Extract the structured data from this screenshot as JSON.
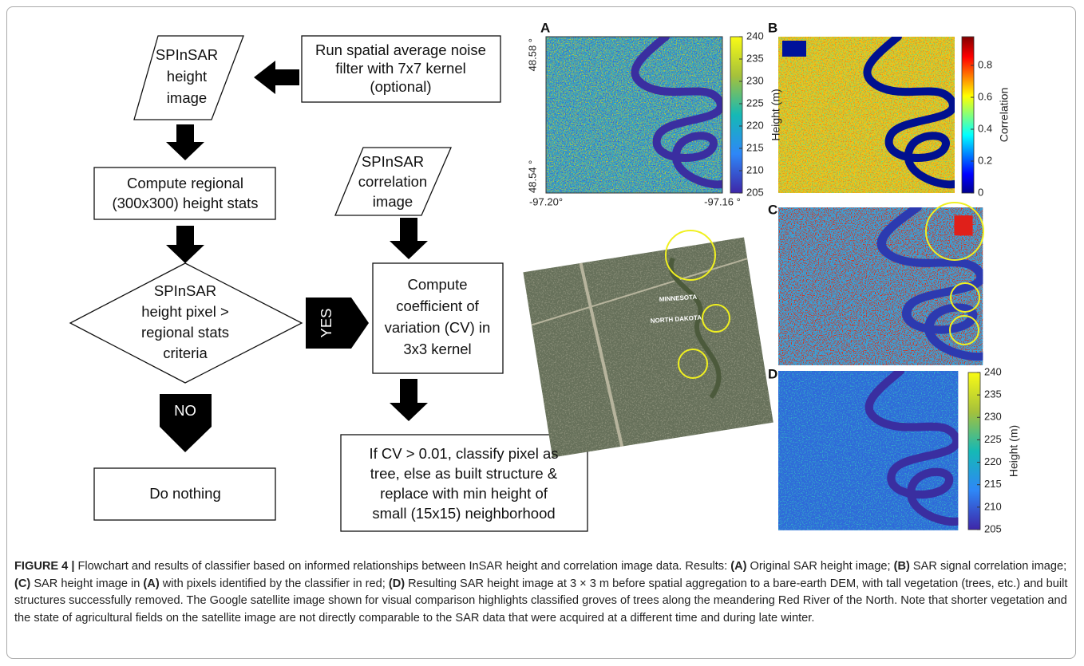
{
  "flowchart": {
    "height_image": [
      "SPInSAR",
      "height",
      "image"
    ],
    "noise_filter": [
      "Run spatial average noise",
      "filter with 7x7 kernel",
      "(optional)"
    ],
    "regional_stats": [
      "Compute regional",
      "(300x300) height stats"
    ],
    "decision": [
      "SPInSAR",
      "height pixel >",
      "regional stats",
      "criteria"
    ],
    "yes": "YES",
    "no": "NO",
    "do_nothing": "Do nothing",
    "correlation_image": [
      "SPInSAR",
      "correlation",
      "image"
    ],
    "cv": [
      "Compute",
      "coefficient of",
      "variation (CV) in",
      "3x3 kernel"
    ],
    "classify": [
      "If CV > 0.01, classify pixel as",
      "tree, else as built structure &",
      "replace with min height of",
      "small (15x15) neighborhood"
    ]
  },
  "panels": {
    "A": {
      "label": "A",
      "lat_labels": [
        "48.58 °",
        "48.54 °"
      ],
      "lon_labels": [
        "-97.20°",
        "-97.16 °"
      ],
      "colorbar": {
        "label": "Height (m)",
        "lim": [
          205,
          240
        ],
        "ticks": [
          240,
          235,
          230,
          225,
          220,
          215,
          210,
          205
        ]
      }
    },
    "B": {
      "label": "B",
      "colorbar": {
        "label": "Correlation",
        "lim": [
          0,
          0.98
        ],
        "ticks": [
          0.8,
          0.6,
          0.4,
          0.2,
          0
        ]
      }
    },
    "C": {
      "label": "C"
    },
    "D": {
      "label": "D",
      "colorbar": {
        "label": "Height (m)",
        "lim": [
          205,
          240
        ],
        "ticks": [
          240,
          235,
          230,
          225,
          220,
          215,
          210,
          205
        ]
      }
    }
  },
  "satellite": {
    "labels": [
      "MINNESOTA",
      "NORTH DAKOTA"
    ]
  },
  "caption": {
    "runs": [
      {
        "text": "FIGURE 4 |",
        "bold": true
      },
      {
        "text": " Flowchart and results of classifier based on informed relationships between InSAR height and correlation image data. Results: ",
        "bold": false
      },
      {
        "text": "(A)",
        "bold": true
      },
      {
        "text": " Original SAR height image; ",
        "bold": false
      },
      {
        "text": "(B)",
        "bold": true
      },
      {
        "text": " SAR signal correlation image; ",
        "bold": false
      },
      {
        "text": "(C)",
        "bold": true
      },
      {
        "text": " SAR height image in ",
        "bold": false
      },
      {
        "text": "(A)",
        "bold": true
      },
      {
        "text": " with pixels identified by the classifier in red; ",
        "bold": false
      },
      {
        "text": "(D)",
        "bold": true
      },
      {
        "text": " Resulting SAR height image at 3 × 3 m before spatial aggregation to a bare-earth DEM, with tall vegetation (trees, etc.) and built structures successfully removed. The Google satellite image shown for visual comparison highlights classified groves of trees along the meandering Red River of the North. Note that shorter vegetation and the state of agricultural fields on the satellite image are not directly comparable to the SAR data that were acquired at a different time and during late winter.",
        "bold": false
      }
    ]
  }
}
